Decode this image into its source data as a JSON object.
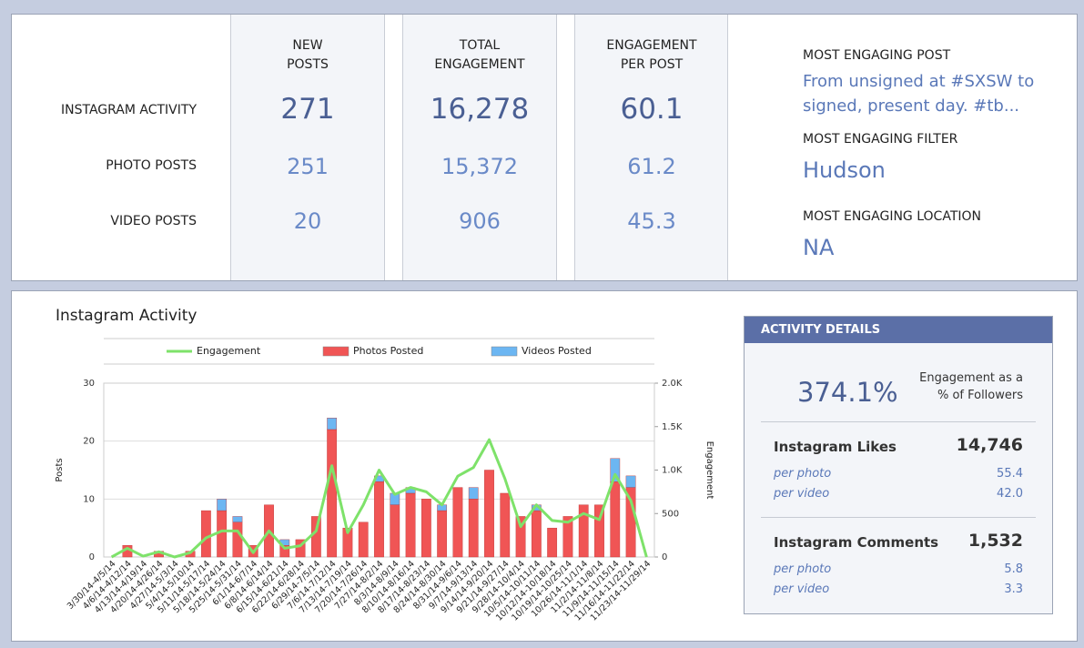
{
  "summary": {
    "row_labels": [
      "INSTAGRAM ACTIVITY",
      "PHOTO POSTS",
      "VIDEO POSTS"
    ],
    "columns": [
      {
        "header": "NEW POSTS",
        "values": [
          271,
          251,
          20
        ]
      },
      {
        "header": "TOTAL ENGAGEMENT",
        "values": [
          "16,278",
          "15,372",
          "906"
        ]
      },
      {
        "header": "ENGAGEMENT PER POST",
        "values": [
          60.1,
          61.2,
          45.3
        ]
      }
    ],
    "highlights": [
      {
        "label": "MOST ENGAGING POST",
        "value": "From unsigned at #SXSW to signed, present day. #tb..."
      },
      {
        "label": "MOST ENGAGING FILTER",
        "value": "Hudson"
      },
      {
        "label": "MOST ENGAGING LOCATION",
        "value": "NA"
      }
    ]
  },
  "chart_data": {
    "type": "bar",
    "title": "Instagram Activity",
    "y_label": "Posts",
    "y2_label": "Engagement",
    "stacked": true,
    "grid": true,
    "legend": "top",
    "categories": [
      "3/30/14-4/5/14",
      "4/6/14-4/12/14",
      "4/13/14-4/19/14",
      "4/20/14-4/26/14",
      "4/27/14-5/3/14",
      "5/4/14-5/10/14",
      "5/11/14-5/17/14",
      "5/18/14-5/24/14",
      "5/25/14-5/31/14",
      "6/1/14-6/7/14",
      "6/8/14-6/14/14",
      "6/15/14-6/21/14",
      "6/22/14-6/28/14",
      "6/29/14-7/5/14",
      "7/6/14-7/12/14",
      "7/13/14-7/19/14",
      "7/20/14-7/26/14",
      "7/27/14-8/2/14",
      "8/3/14-8/9/14",
      "8/10/14-8/16/14",
      "8/17/14-8/23/14",
      "8/24/14-8/30/14",
      "8/31/14-9/6/14",
      "9/7/14-9/13/14",
      "9/14/14-9/20/14",
      "9/21/14-9/27/14",
      "9/28/14-10/4/14",
      "10/5/14-10/11/14",
      "10/12/14-10/18/14",
      "10/19/14-10/25/14",
      "10/26/14-11/1/14",
      "11/2/14-11/8/14",
      "11/9/14-11/15/14",
      "11/16/14-11/22/14",
      "11/23/14-11/29/14"
    ],
    "series": [
      {
        "name": "Engagement",
        "type": "line",
        "axis": "y2",
        "color": "#7ee26a",
        "values": [
          0,
          100,
          10,
          60,
          0,
          50,
          220,
          300,
          300,
          50,
          300,
          100,
          130,
          300,
          1050,
          280,
          600,
          1000,
          720,
          800,
          750,
          600,
          930,
          1030,
          1350,
          900,
          350,
          600,
          420,
          400,
          500,
          430,
          950,
          650,
          0
        ]
      },
      {
        "name": "Photos Posted",
        "type": "bar",
        "color": "#f05555",
        "values": [
          0,
          2,
          0,
          1,
          0,
          1,
          8,
          8,
          6,
          2,
          9,
          2,
          3,
          7,
          22,
          5,
          6,
          13,
          9,
          11,
          10,
          8,
          12,
          10,
          15,
          11,
          7,
          8,
          5,
          7,
          9,
          9,
          13,
          12,
          0
        ]
      },
      {
        "name": "Videos Posted",
        "type": "bar",
        "color": "#6cb6f2",
        "values": [
          0,
          0,
          0,
          0,
          0,
          0,
          0,
          2,
          1,
          0,
          0,
          1,
          0,
          0,
          2,
          0,
          0,
          1,
          2,
          1,
          0,
          1,
          0,
          2,
          0,
          0,
          0,
          1,
          0,
          0,
          0,
          0,
          4,
          2,
          0
        ]
      }
    ],
    "ylim": [
      0,
      30
    ],
    "yticks": [
      0,
      10,
      20,
      30
    ],
    "y2lim": [
      0,
      2000
    ],
    "y2ticks": [
      0,
      500,
      {
        "value": 1000,
        "label": "1.0K"
      },
      {
        "value": 1500,
        "label": "1.5K"
      },
      {
        "value": 2000,
        "label": "2.0K"
      }
    ]
  },
  "details": {
    "header": "ACTIVITY DETAILS",
    "rate": "374.1%",
    "rate_caption": "Engagement as a % of Followers",
    "groups": [
      {
        "title": "Instagram Likes",
        "total": "14,746",
        "rows": [
          {
            "label": "per photo",
            "value": 55.4
          },
          {
            "label": "per video",
            "value": "42.0"
          }
        ]
      },
      {
        "title": "Instagram Comments",
        "total": "1,532",
        "rows": [
          {
            "label": "per photo",
            "value": 5.8
          },
          {
            "label": "per video",
            "value": 3.3
          }
        ]
      }
    ]
  }
}
